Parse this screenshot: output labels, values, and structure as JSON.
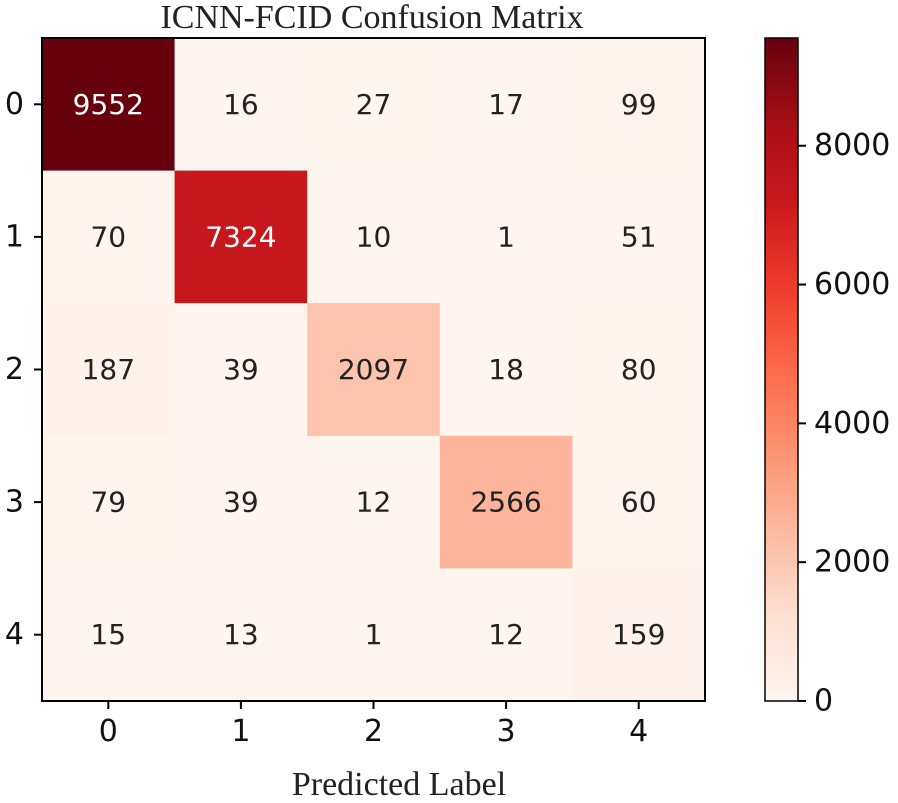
{
  "chart_data": {
    "type": "heatmap",
    "title": "ICNN-FCID Confusion Matrix",
    "xlabel": "Predicted Label",
    "ylabel": "",
    "x_categories": [
      "0",
      "1",
      "2",
      "3",
      "4"
    ],
    "y_categories": [
      "0",
      "1",
      "2",
      "3",
      "4"
    ],
    "matrix": [
      [
        9552,
        16,
        27,
        17,
        99
      ],
      [
        70,
        7324,
        10,
        1,
        51
      ],
      [
        187,
        39,
        2097,
        18,
        80
      ],
      [
        79,
        39,
        12,
        2566,
        60
      ],
      [
        15,
        13,
        1,
        12,
        159
      ]
    ],
    "colorscale": "Reds",
    "colorbar": {
      "min": 0,
      "max": 9552,
      "ticks": [
        0,
        2000,
        4000,
        6000,
        8000
      ],
      "tick_labels": [
        "0",
        "2000",
        "4000",
        "6000",
        "8000"
      ]
    },
    "colors": {
      "low": "#fff5f0",
      "high": "#67000d",
      "text_dark": "#222222",
      "text_light": "#ffffff"
    }
  }
}
